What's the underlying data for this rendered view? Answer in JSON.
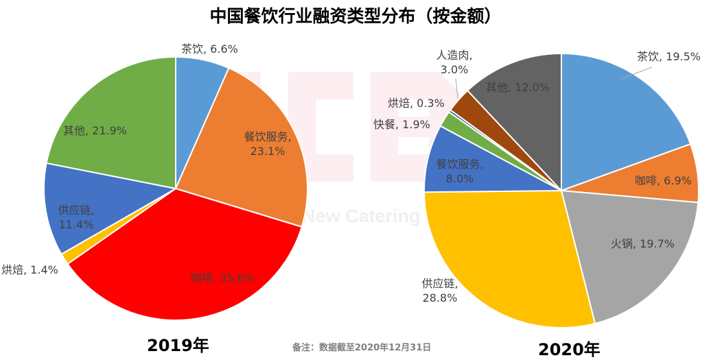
{
  "title": "中国餐饮行业融资类型分布（按金额）",
  "watermark": {
    "logo": "NCB",
    "text": "New Catering",
    "logo_color": "#fdeef2",
    "text_color": "#efefef"
  },
  "note": "备注：数据截至2020年12月31日",
  "chart_data": [
    {
      "type": "pie",
      "title": "2019年",
      "categories": [
        "茶饮",
        "餐饮服务",
        "咖啡",
        "烘焙",
        "供应链",
        "其他"
      ],
      "values": [
        6.6,
        23.1,
        35.6,
        1.4,
        11.4,
        21.9
      ],
      "unit": "%",
      "colors": [
        "#5b9bd5",
        "#ed7d31",
        "#ff0000",
        "#ffc000",
        "#4472c4",
        "#70ad47"
      ],
      "labels": [
        "茶饮, 6.6%",
        "餐饮服务, 23.1%",
        "咖啡, 35.6%",
        "烘焙, 1.4%",
        "供应链, 11.4%",
        "其他, 21.9%"
      ],
      "start_angle": "12 o'clock, clockwise"
    },
    {
      "type": "pie",
      "title": "2020年",
      "categories": [
        "茶饮",
        "咖啡",
        "火锅",
        "供应链",
        "餐饮服务",
        "快餐",
        "烘焙",
        "人造肉",
        "其他"
      ],
      "values": [
        19.5,
        6.9,
        19.7,
        28.8,
        8.0,
        1.9,
        0.3,
        3.0,
        12.0
      ],
      "unit": "%",
      "colors": [
        "#5b9bd5",
        "#ed7d31",
        "#a5a5a5",
        "#ffc000",
        "#4472c4",
        "#70ad47",
        "#255e91",
        "#9e480e",
        "#636363"
      ],
      "labels": [
        "茶饮, 19.5%",
        "咖啡, 6.9%",
        "火锅, 19.7%",
        "供应链, 28.8%",
        "餐饮服务, 8.0%",
        "快餐, 1.9%",
        "烘焙, 0.3%",
        "人造肉, 3.0%",
        "其他, 12.0%"
      ],
      "start_angle": "12 o'clock, clockwise"
    }
  ],
  "labels2019": {
    "tea": "茶饮, 6.6%",
    "service_1": "餐饮服务,",
    "service_2": "23.1%",
    "coffee": "咖啡, 35.6%",
    "bakery": "烘焙, 1.4%",
    "supply_1": "供应链,",
    "supply_2": "11.4%",
    "other": "其他, 21.9%"
  },
  "labels2020": {
    "tea": "茶饮, 19.5%",
    "coffee": "咖啡, 6.9%",
    "hotpot": "火锅, 19.7%",
    "supply_1": "供应链,",
    "supply_2": "28.8%",
    "service_1": "餐饮服务,",
    "service_2": "8.0%",
    "fastfood": "快餐, 1.9%",
    "bakery": "烘焙, 0.3%",
    "meat_1": "人造肉,",
    "meat_2": "3.0%",
    "other": "其他, 12.0%"
  },
  "years": {
    "y2019": "2019年",
    "y2020": "2020年"
  }
}
